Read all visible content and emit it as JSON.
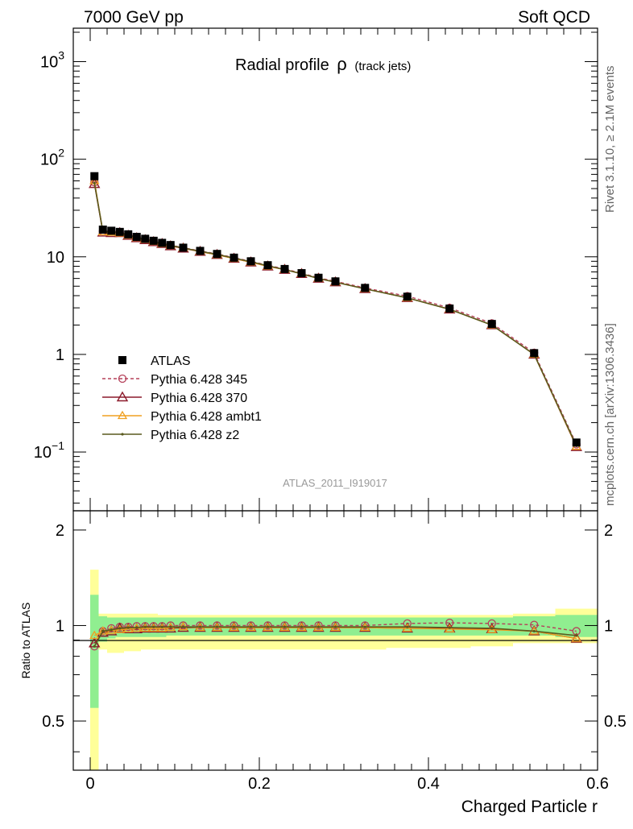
{
  "header": {
    "left": "7000 GeV pp",
    "right": "Soft QCD"
  },
  "side_labels": {
    "upper": "Rivet 3.1.10, ≥ 2.1M events",
    "lower": "mcplots.cern.ch [arXiv:1306.3436]"
  },
  "analysis_id": "ATLAS_2011_I919017",
  "colors": {
    "data": "#000000",
    "p345": "#b5405a",
    "p370": "#8b1a2b",
    "ambt1": "#f0a020",
    "z2": "#5a5a1e",
    "band_inner": "#90ee90",
    "band_outer": "#ffff99"
  },
  "chart_data": [
    {
      "type": "line",
      "title": "Radial profile",
      "title_symbol": "ρ",
      "title_suffix": "(track jets)",
      "xlabel": "",
      "ylabel": "",
      "xlim": [
        -0.02,
        0.6
      ],
      "ylim": [
        0.025,
        2200
      ],
      "yscale": "log",
      "yticks": [
        {
          "value": 1000,
          "label": "10",
          "exp": "3"
        },
        {
          "value": 100,
          "label": "10",
          "exp": "2"
        },
        {
          "value": 10,
          "label": "10",
          "exp": ""
        },
        {
          "value": 1,
          "label": "1",
          "exp": ""
        },
        {
          "value": 0.1,
          "label": "10",
          "exp": "−1"
        }
      ],
      "legend_position": "bottom-left",
      "x": [
        0.005,
        0.015,
        0.025,
        0.035,
        0.045,
        0.055,
        0.065,
        0.075,
        0.085,
        0.095,
        0.11,
        0.13,
        0.15,
        0.17,
        0.19,
        0.21,
        0.23,
        0.25,
        0.27,
        0.29,
        0.325,
        0.375,
        0.425,
        0.475,
        0.525,
        0.575
      ],
      "series": [
        {
          "name": "ATLAS",
          "key": "data",
          "marker": "square",
          "values": [
            67,
            19,
            18.5,
            18,
            17,
            16,
            15.3,
            14.6,
            13.9,
            13.2,
            12.4,
            11.5,
            10.7,
            9.8,
            9.0,
            8.2,
            7.5,
            6.8,
            6.1,
            5.6,
            4.8,
            3.9,
            2.95,
            2.05,
            1.03,
            0.125
          ]
        },
        {
          "name": "Pythia 6.428 345",
          "key": "p345",
          "marker": "circle",
          "values": [
            58,
            18.3,
            18.2,
            17.8,
            16.9,
            15.9,
            15.2,
            14.5,
            13.8,
            13.2,
            12.4,
            11.5,
            10.7,
            9.8,
            9.0,
            8.2,
            7.5,
            6.8,
            6.1,
            5.6,
            4.8,
            3.95,
            3.0,
            2.08,
            1.04,
            0.12
          ]
        },
        {
          "name": "Pythia 6.428 370",
          "key": "p370",
          "marker": "triangle",
          "values": [
            56,
            17.8,
            17.6,
            17.6,
            16.5,
            15.6,
            14.9,
            14.2,
            13.6,
            12.9,
            12.2,
            11.3,
            10.5,
            9.6,
            8.8,
            8.0,
            7.4,
            6.7,
            6.0,
            5.5,
            4.7,
            3.8,
            2.9,
            2.0,
            1.0,
            0.113
          ]
        },
        {
          "name": "Pythia 6.428 ambt1",
          "key": "ambt1",
          "marker": "triangle-small",
          "values": [
            60,
            18.0,
            17.8,
            17.5,
            16.6,
            15.7,
            15.0,
            14.3,
            13.6,
            13.0,
            12.3,
            11.3,
            10.5,
            9.6,
            8.8,
            8.0,
            7.4,
            6.7,
            6.0,
            5.5,
            4.7,
            3.8,
            2.9,
            2.0,
            1.0,
            0.114
          ]
        },
        {
          "name": "Pythia 6.428 z2",
          "key": "z2",
          "marker": "dot",
          "values": [
            57,
            18.2,
            18.0,
            17.7,
            16.8,
            15.8,
            15.1,
            14.4,
            13.7,
            13.1,
            12.3,
            11.4,
            10.6,
            9.7,
            8.9,
            8.1,
            7.4,
            6.7,
            6.0,
            5.5,
            4.7,
            3.8,
            2.9,
            2.0,
            1.0,
            0.116
          ]
        }
      ]
    },
    {
      "type": "line",
      "xlabel": "Charged Particle r",
      "ylabel": "Ratio to ATLAS",
      "xlim": [
        -0.02,
        0.6
      ],
      "ylim": [
        0.35,
        2.3
      ],
      "yscale": "log",
      "yticks": [
        {
          "value": 2,
          "label": "2"
        },
        {
          "value": 1,
          "label": "1"
        },
        {
          "value": 0.5,
          "label": "0.5"
        }
      ],
      "xticks": [
        {
          "value": 0,
          "label": "0"
        },
        {
          "value": 0.2,
          "label": "0.2"
        },
        {
          "value": 0.4,
          "label": "0.4"
        },
        {
          "value": 0.6,
          "label": "0.6"
        }
      ],
      "x": [
        0.005,
        0.015,
        0.025,
        0.035,
        0.045,
        0.055,
        0.065,
        0.075,
        0.085,
        0.095,
        0.11,
        0.13,
        0.15,
        0.17,
        0.19,
        0.21,
        0.23,
        0.25,
        0.27,
        0.29,
        0.325,
        0.375,
        0.425,
        0.475,
        0.525,
        0.575
      ],
      "x_edges": [
        0,
        0.01,
        0.02,
        0.03,
        0.04,
        0.05,
        0.06,
        0.07,
        0.08,
        0.09,
        0.1,
        0.12,
        0.14,
        0.16,
        0.18,
        0.2,
        0.22,
        0.24,
        0.26,
        0.28,
        0.3,
        0.35,
        0.4,
        0.45,
        0.5,
        0.55,
        0.6
      ],
      "band_inner": {
        "lo": [
          0.55,
          0.89,
          0.91,
          0.92,
          0.92,
          0.92,
          0.92,
          0.92,
          0.92,
          0.93,
          0.93,
          0.93,
          0.93,
          0.93,
          0.93,
          0.93,
          0.93,
          0.93,
          0.93,
          0.93,
          0.93,
          0.93,
          0.93,
          0.93,
          0.93,
          0.92
        ],
        "hi": [
          1.25,
          1.07,
          1.06,
          1.06,
          1.06,
          1.06,
          1.06,
          1.06,
          1.06,
          1.06,
          1.06,
          1.06,
          1.06,
          1.06,
          1.06,
          1.06,
          1.06,
          1.06,
          1.06,
          1.06,
          1.06,
          1.06,
          1.06,
          1.06,
          1.07,
          1.08
        ]
      },
      "band_outer": {
        "lo": [
          0.35,
          0.84,
          0.82,
          0.82,
          0.83,
          0.83,
          0.84,
          0.84,
          0.84,
          0.84,
          0.84,
          0.84,
          0.84,
          0.84,
          0.84,
          0.84,
          0.84,
          0.84,
          0.84,
          0.84,
          0.84,
          0.85,
          0.85,
          0.86,
          0.88,
          0.88
        ],
        "hi": [
          1.5,
          1.09,
          1.09,
          1.09,
          1.09,
          1.09,
          1.09,
          1.09,
          1.08,
          1.08,
          1.08,
          1.08,
          1.08,
          1.08,
          1.08,
          1.08,
          1.08,
          1.08,
          1.08,
          1.08,
          1.08,
          1.08,
          1.08,
          1.08,
          1.09,
          1.13
        ]
      },
      "series": [
        {
          "name": "Pythia 6.428 345",
          "key": "p345",
          "marker": "circle",
          "values": [
            0.86,
            0.96,
            0.98,
            0.99,
            0.99,
            0.995,
            0.995,
            0.995,
            0.995,
            1.0,
            1.0,
            1.0,
            1.0,
            1.0,
            1.0,
            1.0,
            1.0,
            1.0,
            1.0,
            1.0,
            1.0,
            1.015,
            1.02,
            1.015,
            1.005,
            0.96
          ]
        },
        {
          "name": "Pythia 6.428 370",
          "key": "p370",
          "marker": "triangle",
          "values": [
            0.88,
            0.95,
            0.96,
            0.98,
            0.975,
            0.975,
            0.98,
            0.98,
            0.98,
            0.98,
            0.985,
            0.985,
            0.985,
            0.985,
            0.985,
            0.985,
            0.985,
            0.985,
            0.985,
            0.985,
            0.985,
            0.98,
            0.98,
            0.975,
            0.96,
            0.91
          ]
        },
        {
          "name": "Pythia 6.428 ambt1",
          "key": "ambt1",
          "marker": "triangle-small",
          "values": [
            0.93,
            0.96,
            0.965,
            0.97,
            0.975,
            0.98,
            0.98,
            0.98,
            0.98,
            0.985,
            0.99,
            0.985,
            0.985,
            0.985,
            0.985,
            0.985,
            0.985,
            0.985,
            0.985,
            0.985,
            0.985,
            0.98,
            0.975,
            0.97,
            0.96,
            0.91
          ]
        },
        {
          "name": "Pythia 6.428 z2",
          "key": "z2",
          "marker": "dot",
          "values": [
            0.86,
            0.96,
            0.97,
            0.98,
            0.985,
            0.985,
            0.99,
            0.99,
            0.99,
            0.99,
            0.99,
            0.99,
            0.99,
            0.99,
            0.99,
            0.99,
            0.99,
            0.99,
            0.99,
            0.99,
            0.99,
            0.99,
            0.985,
            0.98,
            0.96,
            0.93
          ]
        }
      ]
    }
  ]
}
